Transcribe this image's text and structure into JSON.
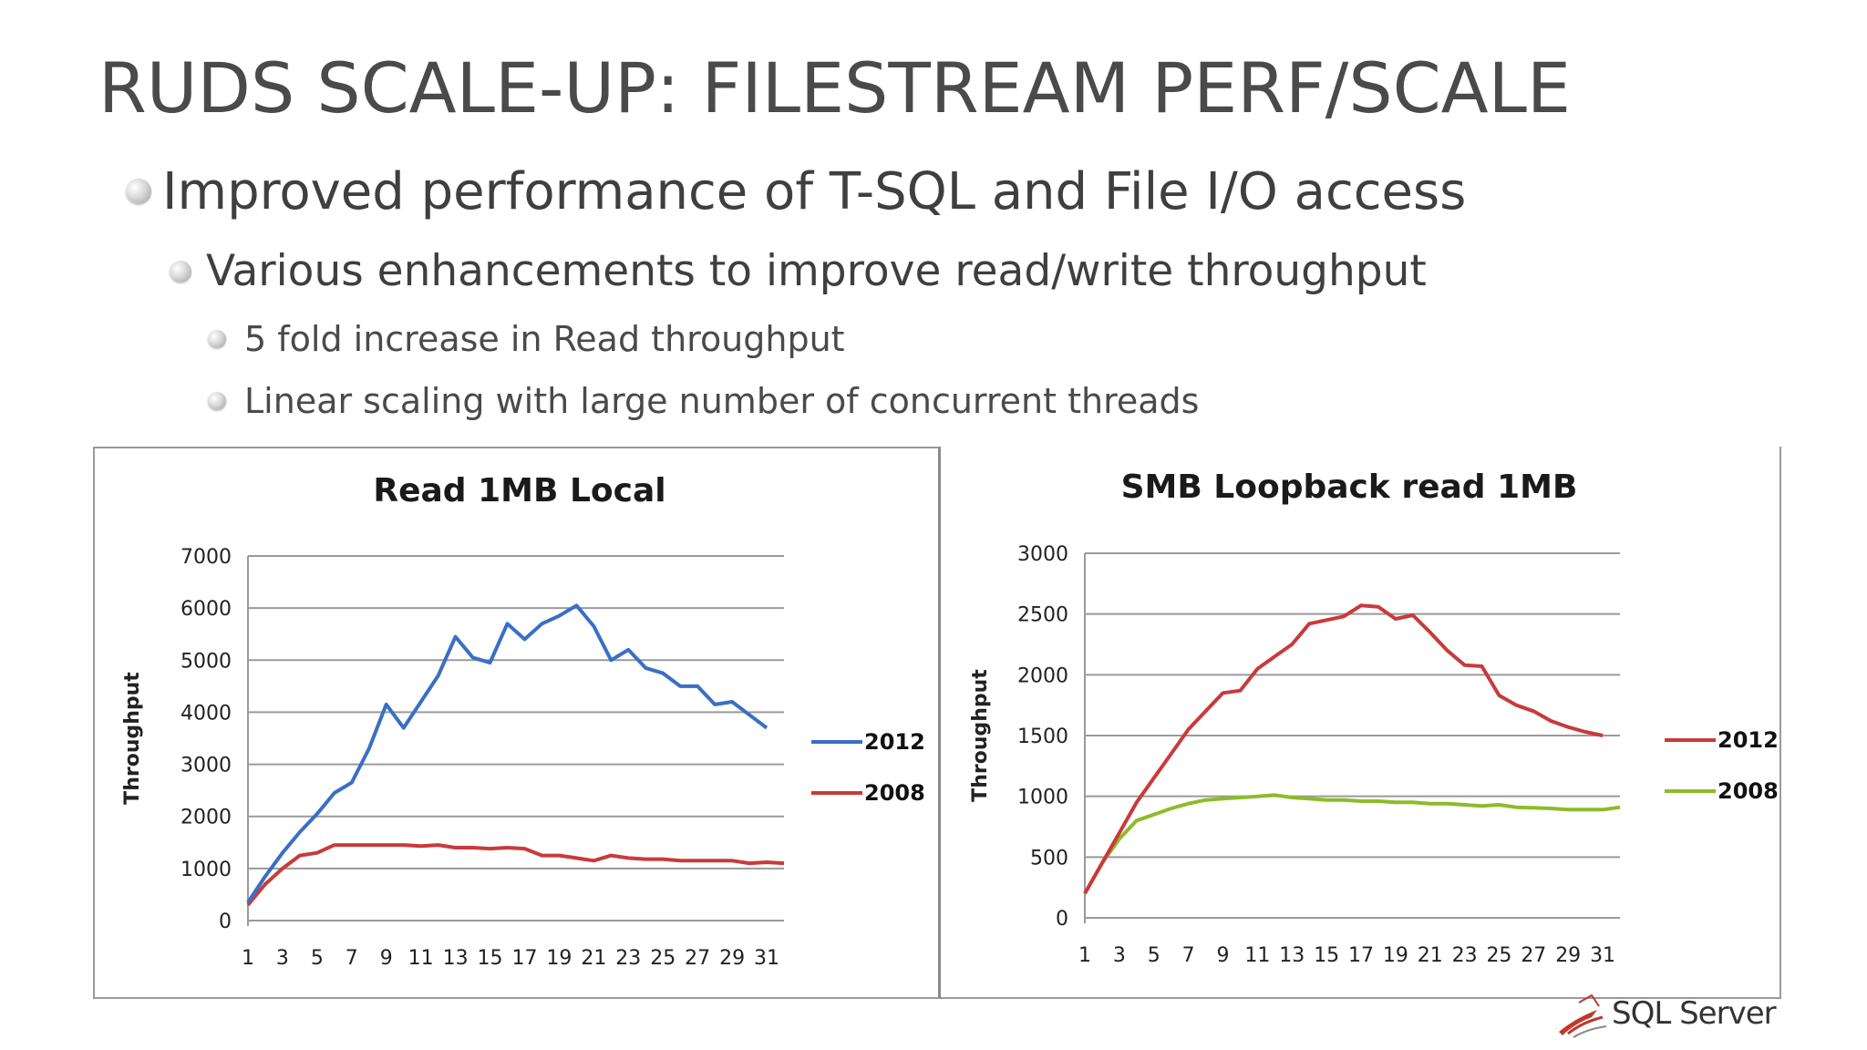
{
  "slide": {
    "title": "RUDS SCALE-UP: FILESTREAM PERF/SCALE",
    "bullets": [
      "Improved performance of T-SQL and File I/O access",
      "Various enhancements to improve read/write throughput",
      "5 fold increase in Read throughput",
      "Linear scaling with large number of concurrent threads"
    ],
    "bullet_icon": "bullet-sphere-icon",
    "logo_icon": "sql-server-logo-icon",
    "logo_text": "SQL Server"
  },
  "chart_data": [
    {
      "type": "line",
      "title": "Read 1MB Local",
      "xlabel": "",
      "ylabel": "Throughput",
      "ylim": [
        0,
        7000
      ],
      "yticks": [
        0,
        1000,
        2000,
        3000,
        4000,
        5000,
        6000,
        7000
      ],
      "x": [
        1,
        2,
        3,
        4,
        5,
        6,
        7,
        8,
        9,
        10,
        11,
        12,
        13,
        14,
        15,
        16,
        17,
        18,
        19,
        20,
        21,
        22,
        23,
        24,
        25,
        26,
        27,
        28,
        29,
        30,
        31,
        32
      ],
      "xtick_labels": [
        "1",
        "3",
        "5",
        "7",
        "9",
        "11",
        "13",
        "15",
        "17",
        "19",
        "21",
        "23",
        "25",
        "27",
        "29",
        "31"
      ],
      "grid": true,
      "legend_position": "right",
      "series": [
        {
          "name": "2012",
          "color": "#3a6fc4",
          "values": [
            350,
            850,
            1300,
            1700,
            2050,
            2450,
            2650,
            3300,
            4150,
            3700,
            4200,
            4700,
            5450,
            5050,
            4950,
            5700,
            5400,
            5700,
            5850,
            6050,
            5650,
            5000,
            5200,
            4850,
            4750,
            4500,
            4500,
            4150,
            4200,
            3950,
            3700,
            null
          ]
        },
        {
          "name": "2008",
          "color": "#c93a3a",
          "values": [
            300,
            700,
            1000,
            1250,
            1300,
            1450,
            1450,
            1450,
            1450,
            1450,
            1430,
            1450,
            1400,
            1400,
            1380,
            1400,
            1380,
            1250,
            1250,
            1200,
            1150,
            1250,
            1200,
            1180,
            1180,
            1150,
            1150,
            1150,
            1150,
            1100,
            1120,
            1100
          ]
        }
      ]
    },
    {
      "type": "line",
      "title": "SMB Loopback read 1MB",
      "xlabel": "",
      "ylabel": "Throughput",
      "ylim": [
        0,
        3000
      ],
      "yticks": [
        0,
        500,
        1000,
        1500,
        2000,
        2500,
        3000
      ],
      "x": [
        1,
        2,
        3,
        4,
        5,
        6,
        7,
        8,
        9,
        10,
        11,
        12,
        13,
        14,
        15,
        16,
        17,
        18,
        19,
        20,
        21,
        22,
        23,
        24,
        25,
        26,
        27,
        28,
        29,
        30,
        31,
        32
      ],
      "xtick_labels": [
        "1",
        "3",
        "5",
        "7",
        "9",
        "11",
        "13",
        "15",
        "17",
        "19",
        "21",
        "23",
        "25",
        "27",
        "29",
        "31"
      ],
      "grid": true,
      "legend_position": "right",
      "series": [
        {
          "name": "2012",
          "color": "#c93a3a",
          "values": [
            200,
            450,
            700,
            950,
            1150,
            1350,
            1550,
            1700,
            1850,
            1870,
            2050,
            2150,
            2250,
            2420,
            2450,
            2480,
            2570,
            2560,
            2460,
            2490,
            2350,
            2200,
            2080,
            2070,
            1830,
            1750,
            1700,
            1620,
            1570,
            1530,
            1500,
            null
          ]
        },
        {
          "name": "2008",
          "color": "#8dbb2a",
          "values": [
            200,
            450,
            650,
            800,
            850,
            900,
            940,
            970,
            980,
            990,
            1000,
            1010,
            990,
            980,
            970,
            970,
            960,
            960,
            950,
            950,
            940,
            940,
            930,
            920,
            930,
            910,
            905,
            900,
            890,
            890,
            890,
            910
          ]
        }
      ]
    }
  ]
}
